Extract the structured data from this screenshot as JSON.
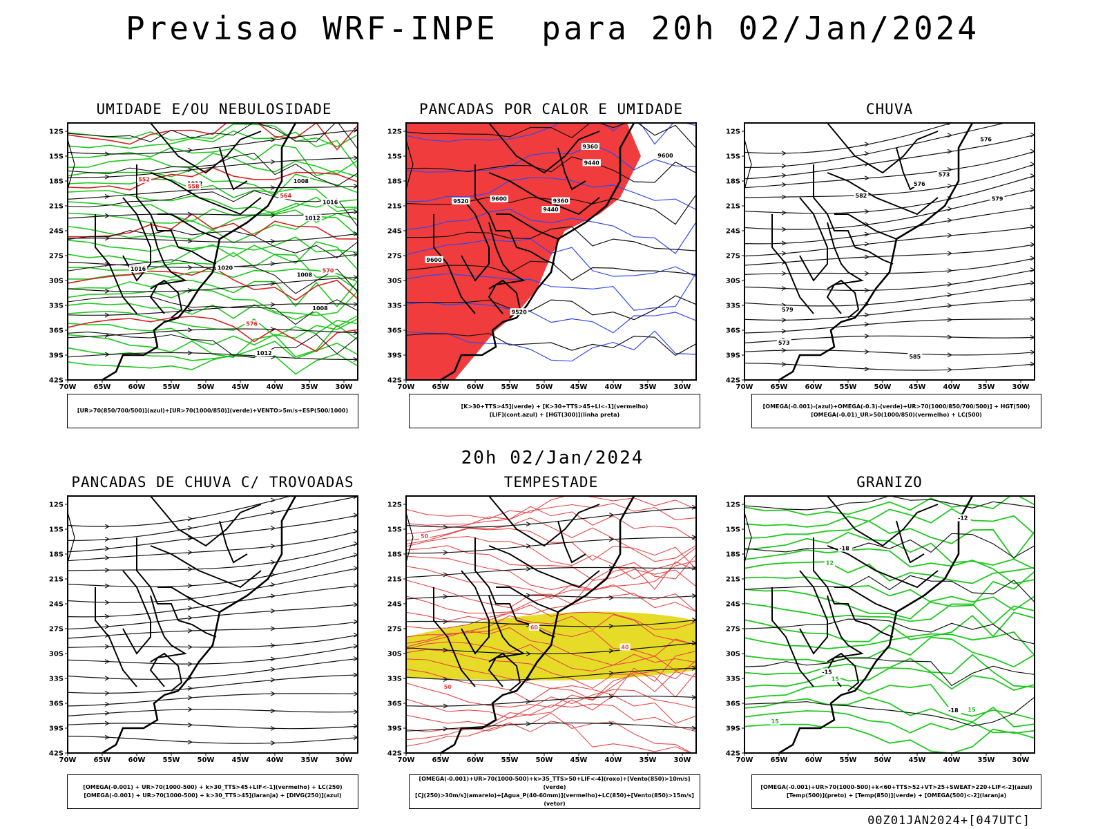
{
  "title": "Previsao WRF-INPE  para 20h 02/Jan/2024",
  "mid_title": "20h 02/Jan/2024",
  "footer": "00Z01JAN2024+[047UTC]",
  "axes": {
    "lat_labels": [
      "12S",
      "15S",
      "18S",
      "21S",
      "24S",
      "27S",
      "30S",
      "33S",
      "36S",
      "39S",
      "42S"
    ],
    "lon_labels": [
      "70W",
      "65W",
      "60W",
      "55W",
      "50W",
      "45W",
      "40W",
      "35W",
      "30W"
    ]
  },
  "colors": {
    "red": "#f03c3c",
    "blue": "#2f49f0",
    "green": "#1ec81e",
    "lavender": "#b0b0f0",
    "yellow": "#e6dc28",
    "teal": "#2c5a58",
    "orange": "#e88a2a"
  },
  "panels": [
    {
      "id": "umidade",
      "title": "UMIDADE E/OU NEBULOSIDADE",
      "legend": [
        "[UR>70(850/700/500)](azul)+[UR>70(1000/850)](verde)+VENTO>5m/s+ESP(500/1000)"
      ],
      "contour_labels": [
        "1008",
        "1008",
        "1008",
        "1012",
        "1012",
        "1012",
        "1016",
        "1016",
        "1020",
        "570",
        "576",
        "564",
        "558",
        "552"
      ]
    },
    {
      "id": "pancadas-calor",
      "title": "PANCADAS POR CALOR E UMIDADE",
      "legend": [
        "[K>30+TTS>45](verde) + [K>30+TTS>45+LI<-1](vermelho)",
        "[LIF](cont.azul) + [HGT(300)](linha preta)"
      ],
      "contour_labels": [
        "9600",
        "9600",
        "9520",
        "9440",
        "9360",
        "9600",
        "9520",
        "9440",
        "9360"
      ]
    },
    {
      "id": "chuva",
      "title": "CHUVA",
      "legend": [
        "[OMEGA(-0.001)-(azul)+OMEGA(-0.3)-(verde)+UR>70(1000/850/700/500)] + HGT(500)",
        "[OMEGA(-0.01)_UR>50(1000/850)(vermelho) + LC(500)"
      ],
      "contour_labels": [
        "585",
        "582",
        "579",
        "576",
        "573",
        "576",
        "573",
        "579"
      ]
    },
    {
      "id": "trovoadas",
      "title": "PANCADAS DE CHUVA C/ TROVOADAS",
      "legend": [
        "[OMEGA(-0.001) + UR>70(1000-500) + k>30_TTS>45+LIF<-1](vermelho) + LC(250)",
        "[OMEGA(-0.001) + UR>70(1000-500) + k>30_TTS>45](laranja) + [DIVG(250)](azul)"
      ],
      "contour_labels": []
    },
    {
      "id": "tempestade",
      "title": "TEMPESTADE",
      "legend": [
        "[OMEGA(-0.001)+UR>70(1000-500)+k>35_TTS>50+LIF<-4](roxo)+[Vento(850)>10m/s](verde)",
        "[CJ(250)>30m/s](amarelo)+[Agua_P(40-60mm)](vermelho)+LC(850)+[Vento(850)>15m/s](vetor)"
      ],
      "contour_labels": [
        "60",
        "50",
        "40",
        "50"
      ]
    },
    {
      "id": "granizo",
      "title": "GRANIZO",
      "legend": [
        "[OMEGA(-0.001)+UR>70(1000-500)+k<60+TTS>52+VT>25+SWEAT>220+LIF<-2](azul)",
        "[Temp(500)](preto) + [Temp(850)](verde) + [OMEGA(500)<-2](laranja)"
      ],
      "contour_labels": [
        "-12",
        "-15",
        "-18",
        "-18",
        "15",
        "15",
        "12",
        "15"
      ]
    }
  ]
}
